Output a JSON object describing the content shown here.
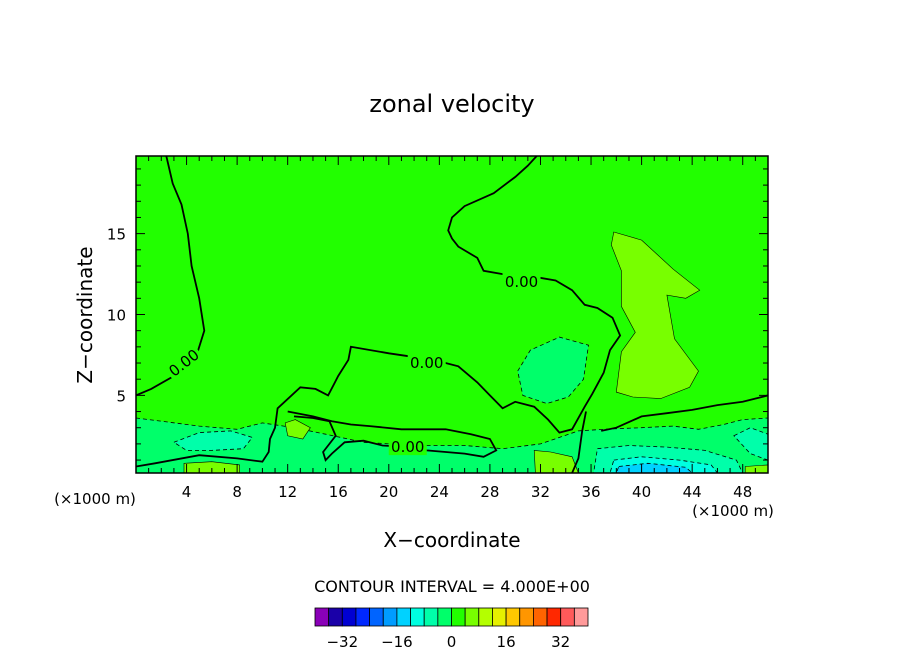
{
  "chart_data": {
    "type": "heatmap",
    "title": "zonal velocity",
    "xlabel": "X−coordinate",
    "ylabel": "Z−coordinate",
    "x_unit_left": "(×1000 m)",
    "x_unit_right": "(×1000 m)",
    "xlim": [
      0,
      50
    ],
    "ylim": [
      0.2,
      19.8
    ],
    "x_ticks": [
      4,
      8,
      12,
      16,
      20,
      24,
      28,
      32,
      36,
      40,
      44,
      48
    ],
    "x_tick_labels": [
      "4",
      "8",
      "12",
      "16",
      "20",
      "24",
      "28",
      "32",
      "36",
      "40",
      "44",
      "48"
    ],
    "y_ticks": [
      5,
      10,
      15
    ],
    "y_tick_labels": [
      "5",
      "10",
      "15"
    ],
    "contour_interval_text": "CONTOUR INTERVAL = 4.000E+00",
    "contour_labels": [
      {
        "text": "0.00",
        "x": 3.8,
        "z": 7.0
      },
      {
        "text": "0.00",
        "x": 30.5,
        "z": 12.0
      },
      {
        "text": "0.00",
        "x": 23.0,
        "z": 7.0
      },
      {
        "text": "0.00",
        "x": 21.5,
        "z": 1.8
      }
    ],
    "background_level": 0,
    "regions": [
      {
        "name": "positive-lobe",
        "level": 4,
        "points": [
          [
            37.8,
            15.1
          ],
          [
            40,
            14.6
          ],
          [
            42.5,
            12.8
          ],
          [
            44.6,
            11.5
          ],
          [
            43.5,
            11.0
          ],
          [
            42,
            11.2
          ],
          [
            42.6,
            8.5
          ],
          [
            44.5,
            6.5
          ],
          [
            43.8,
            5.5
          ],
          [
            41.5,
            4.8
          ],
          [
            39.3,
            4.9
          ],
          [
            38,
            5.2
          ],
          [
            38.4,
            7.7
          ],
          [
            39.5,
            8.9
          ],
          [
            38.4,
            10.5
          ],
          [
            38.4,
            12.7
          ],
          [
            37.6,
            14.3
          ]
        ]
      },
      {
        "name": "negative-core",
        "level": -4,
        "points": [
          [
            30.2,
            6.5
          ],
          [
            31.2,
            7.8
          ],
          [
            33.5,
            8.6
          ],
          [
            35.8,
            8.1
          ],
          [
            35.4,
            6.0
          ],
          [
            34.2,
            4.9
          ],
          [
            32.5,
            4.5
          ],
          [
            30.6,
            5.0
          ]
        ]
      },
      {
        "name": "near-surface-band",
        "level": -4,
        "points": [
          [
            0,
            3.6
          ],
          [
            2,
            3.4
          ],
          [
            5,
            3.1
          ],
          [
            8,
            2.9
          ],
          [
            10,
            3.3
          ],
          [
            12.5,
            3.0
          ],
          [
            15,
            2.6
          ],
          [
            18,
            2.1
          ],
          [
            22,
            1.9
          ],
          [
            26,
            1.9
          ],
          [
            29,
            1.7
          ],
          [
            32,
            2.0
          ],
          [
            35,
            2.8
          ],
          [
            37,
            2.9
          ],
          [
            40,
            3.0
          ],
          [
            42.5,
            3.1
          ],
          [
            44.5,
            2.9
          ],
          [
            46.5,
            3.2
          ],
          [
            48,
            3.5
          ],
          [
            50,
            3.6
          ],
          [
            50,
            0.2
          ],
          [
            0,
            0.2
          ]
        ]
      },
      {
        "name": "low-left-minimum",
        "level": -8,
        "points": [
          [
            3,
            2.1
          ],
          [
            5,
            2.7
          ],
          [
            7.5,
            2.8
          ],
          [
            9.2,
            2.4
          ],
          [
            8.5,
            1.7
          ],
          [
            6,
            1.6
          ],
          [
            4,
            1.6
          ]
        ]
      },
      {
        "name": "surface-minimum-1",
        "level": -8,
        "points": [
          [
            36.5,
            1.7
          ],
          [
            39,
            1.9
          ],
          [
            42,
            1.8
          ],
          [
            45,
            1.6
          ],
          [
            47.5,
            1.0
          ],
          [
            48,
            0.2
          ],
          [
            36.2,
            0.2
          ]
        ]
      },
      {
        "name": "surface-minimum-2",
        "level": -12,
        "points": [
          [
            37.8,
            1.0
          ],
          [
            40,
            1.2
          ],
          [
            43,
            1.0
          ],
          [
            45.5,
            0.7
          ],
          [
            46,
            0.2
          ],
          [
            37.5,
            0.2
          ]
        ]
      },
      {
        "name": "surface-minimum-3",
        "level": -16,
        "points": [
          [
            38.2,
            0.6
          ],
          [
            40.5,
            0.8
          ],
          [
            43.5,
            0.55
          ],
          [
            44,
            0.2
          ],
          [
            38,
            0.2
          ]
        ]
      },
      {
        "name": "corner-minimum",
        "level": -8,
        "points": [
          [
            47.3,
            2.5
          ],
          [
            48.6,
            3.0
          ],
          [
            50,
            2.6
          ],
          [
            50,
            1.0
          ],
          [
            48.6,
            1.4
          ]
        ]
      },
      {
        "name": "small-positive-1",
        "level": 4,
        "points": [
          [
            11.8,
            3.3
          ],
          [
            12.6,
            3.5
          ],
          [
            13.8,
            3.0
          ],
          [
            13.2,
            2.3
          ],
          [
            12.0,
            2.5
          ]
        ]
      },
      {
        "name": "small-positive-2",
        "level": 4,
        "points": [
          [
            31.5,
            1.6
          ],
          [
            32.8,
            1.5
          ],
          [
            34.5,
            1.2
          ],
          [
            35,
            0.2
          ],
          [
            31.6,
            0.2
          ]
        ]
      },
      {
        "name": "small-positive-3",
        "level": 4,
        "points": [
          [
            3.8,
            0.8
          ],
          [
            6,
            0.9
          ],
          [
            8.2,
            0.7
          ],
          [
            8.2,
            0.2
          ],
          [
            3.8,
            0.2
          ]
        ]
      },
      {
        "name": "small-positive-4",
        "level": 4,
        "points": [
          [
            48.2,
            0.6
          ],
          [
            50,
            0.7
          ],
          [
            50,
            0.2
          ],
          [
            48.2,
            0.2
          ]
        ]
      }
    ],
    "zero_contours": [
      {
        "name": "zero-line-left",
        "points": [
          [
            0,
            5.0
          ],
          [
            1.2,
            5.4
          ],
          [
            3,
            6.2
          ],
          [
            4.8,
            7.5
          ],
          [
            5.4,
            9
          ],
          [
            5,
            11
          ],
          [
            4.4,
            13
          ],
          [
            4.1,
            15
          ],
          [
            3.6,
            16.8
          ],
          [
            2.9,
            18.1
          ],
          [
            2.4,
            19.8
          ]
        ]
      },
      {
        "name": "zero-line-main",
        "points": [
          [
            0,
            0.6
          ],
          [
            1.5,
            0.8
          ],
          [
            5,
            1.3
          ],
          [
            8,
            1.1
          ],
          [
            10,
            0.9
          ],
          [
            10.5,
            1.5
          ],
          [
            10.6,
            2.3
          ],
          [
            11,
            3
          ],
          [
            11.2,
            4.2
          ],
          [
            13,
            5.5
          ],
          [
            14.2,
            5.4
          ],
          [
            15.2,
            5.0
          ],
          [
            15.6,
            5.6
          ],
          [
            16,
            6.2
          ],
          [
            16.8,
            7.2
          ],
          [
            17,
            8.0
          ],
          [
            20,
            7.6
          ],
          [
            23.5,
            7.2
          ],
          [
            25.5,
            6.8
          ],
          [
            27,
            5.8
          ],
          [
            28,
            5.0
          ],
          [
            29,
            4.2
          ],
          [
            30,
            4.6
          ],
          [
            31.5,
            4.3
          ],
          [
            32.6,
            3.5
          ],
          [
            33.5,
            2.7
          ],
          [
            34.5,
            2.9
          ],
          [
            35.5,
            4.3
          ],
          [
            36.1,
            5.1
          ],
          [
            37,
            6.4
          ],
          [
            37.5,
            7.8
          ],
          [
            38.3,
            8.7
          ],
          [
            37.7,
            9.8
          ],
          [
            36.5,
            10.4
          ],
          [
            35.5,
            10.6
          ],
          [
            34.5,
            11.5
          ],
          [
            33.2,
            12.1
          ],
          [
            31,
            12.4
          ],
          [
            29,
            12.5
          ],
          [
            27.5,
            12.7
          ],
          [
            27,
            13.5
          ],
          [
            25.5,
            14.2
          ],
          [
            25,
            14.7
          ],
          [
            24.7,
            15.2
          ],
          [
            25,
            16.0
          ],
          [
            26,
            16.7
          ],
          [
            28.3,
            17.5
          ],
          [
            30,
            18.5
          ],
          [
            31,
            19.2
          ],
          [
            31.7,
            19.8
          ]
        ]
      },
      {
        "name": "zero-line-lower",
        "points": [
          [
            12,
            4.0
          ],
          [
            14,
            3.7
          ],
          [
            15.5,
            3.4
          ],
          [
            17,
            3.2
          ],
          [
            18.5,
            3.1
          ],
          [
            21,
            2.9
          ],
          [
            23,
            2.9
          ],
          [
            24.5,
            2.9
          ],
          [
            26.5,
            2.6
          ],
          [
            28,
            2.3
          ],
          [
            28.5,
            1.6
          ],
          [
            27.5,
            1.2
          ],
          [
            26,
            1.4
          ],
          [
            24.5,
            1.5
          ],
          [
            23,
            1.6
          ],
          [
            21.5,
            1.8
          ],
          [
            19.5,
            1.9
          ],
          [
            18,
            2.2
          ],
          [
            16.5,
            2.1
          ],
          [
            15.5,
            1.4
          ],
          [
            15,
            1.0
          ],
          [
            14.8,
            1.5
          ],
          [
            15.8,
            2.5
          ],
          [
            15.3,
            3.4
          ],
          [
            14,
            3.6
          ],
          [
            12.5,
            3.7
          ]
        ]
      },
      {
        "name": "zero-line-right",
        "points": [
          [
            36.8,
            2.8
          ],
          [
            38,
            3.0
          ],
          [
            40,
            3.7
          ],
          [
            42,
            3.9
          ],
          [
            44,
            4.1
          ],
          [
            46,
            4.4
          ],
          [
            48,
            4.6
          ],
          [
            50,
            5.0
          ]
        ]
      },
      {
        "name": "zero-line-jet",
        "points": [
          [
            34.5,
            0.2
          ],
          [
            35,
            1.1
          ],
          [
            35.3,
            2.8
          ],
          [
            35.6,
            4.0
          ]
        ]
      }
    ],
    "colorbar": {
      "levels": [
        -36,
        -32,
        -28,
        -24,
        -20,
        -16,
        -12,
        -8,
        -4,
        0,
        4,
        8,
        12,
        16,
        20,
        24,
        28,
        32,
        36
      ],
      "tick_labels": [
        "−32",
        "−16",
        "0",
        "16",
        "32"
      ],
      "tick_values": [
        -32,
        -16,
        0,
        16,
        32
      ],
      "colors": [
        "#8a00b8",
        "#1a00a8",
        "#0000d2",
        "#0028ff",
        "#0064ff",
        "#009cff",
        "#00d2ff",
        "#00ffe0",
        "#00ffaa",
        "#00ff6a",
        "#22ff00",
        "#78ff00",
        "#b4ff00",
        "#e6f000",
        "#ffc800",
        "#ff9600",
        "#ff6400",
        "#ff2800",
        "#ff5a5a",
        "#ff9a9a"
      ]
    }
  }
}
